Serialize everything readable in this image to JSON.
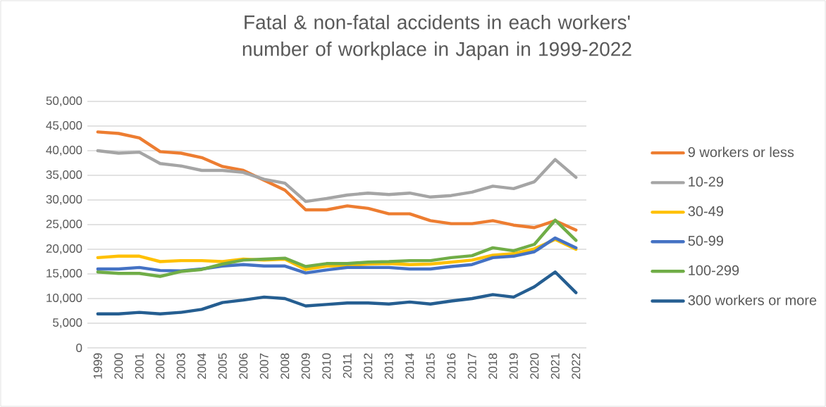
{
  "chart_data": {
    "type": "line",
    "title": "Fatal & non-fatal accidents in each workers' number of workplace in Japan in 1999-2022",
    "categories": [
      "1999",
      "2000",
      "2001",
      "2002",
      "2003",
      "2004",
      "2005",
      "2006",
      "2007",
      "2008",
      "2009",
      "2010",
      "2011",
      "2012",
      "2013",
      "2014",
      "2015",
      "2016",
      "2017",
      "2018",
      "2019",
      "2020",
      "2021",
      "2022"
    ],
    "series": [
      {
        "name": "9 workers or less",
        "color": "#ed7d31",
        "values": [
          43800,
          43500,
          42600,
          39800,
          39500,
          38600,
          36800,
          36000,
          34000,
          32000,
          28000,
          28000,
          28800,
          28300,
          27200,
          27200,
          25800,
          25200,
          25200,
          25800,
          24900,
          24400,
          25800,
          23900
        ]
      },
      {
        "name": "10-29",
        "color": "#a5a5a5",
        "values": [
          40000,
          39500,
          39700,
          37400,
          36900,
          36000,
          36000,
          35600,
          34200,
          33400,
          29700,
          30300,
          31000,
          31400,
          31100,
          31400,
          30600,
          30900,
          31600,
          32800,
          32300,
          33700,
          38200,
          34600
        ]
      },
      {
        "name": "30-49",
        "color": "#ffc000",
        "values": [
          18300,
          18600,
          18600,
          17500,
          17700,
          17700,
          17500,
          18000,
          17800,
          18000,
          15900,
          16600,
          16700,
          17000,
          17100,
          16900,
          17000,
          17400,
          17800,
          18800,
          19100,
          20100,
          22000,
          20000
        ]
      },
      {
        "name": "50-99",
        "color": "#4472c4",
        "values": [
          16000,
          16000,
          16300,
          15700,
          15600,
          16000,
          16600,
          16900,
          16600,
          16600,
          15200,
          15800,
          16300,
          16300,
          16300,
          16000,
          16000,
          16500,
          16900,
          18300,
          18600,
          19500,
          22300,
          20300
        ]
      },
      {
        "name": "100-299",
        "color": "#70ad47",
        "values": [
          15400,
          15100,
          15100,
          14500,
          15500,
          15900,
          17000,
          17800,
          18000,
          18200,
          16500,
          17100,
          17100,
          17400,
          17500,
          17700,
          17700,
          18300,
          18700,
          20300,
          19700,
          21000,
          25900,
          21800
        ]
      },
      {
        "name": "300 workers or more",
        "color": "#255e91",
        "values": [
          6900,
          6900,
          7200,
          6900,
          7200,
          7800,
          9200,
          9700,
          10300,
          10000,
          8500,
          8800,
          9100,
          9100,
          8900,
          9300,
          8900,
          9500,
          10000,
          10800,
          10300,
          12400,
          15400,
          11200
        ]
      }
    ],
    "ylim": [
      0,
      50000
    ],
    "yticks": [
      {
        "value": 0,
        "label": "0"
      },
      {
        "value": 5000,
        "label": "5,000"
      },
      {
        "value": 10000,
        "label": "10,000"
      },
      {
        "value": 15000,
        "label": "15,000"
      },
      {
        "value": 20000,
        "label": "20,000"
      },
      {
        "value": 25000,
        "label": "25,000"
      },
      {
        "value": 30000,
        "label": "30,000"
      },
      {
        "value": 35000,
        "label": "35,000"
      },
      {
        "value": 40000,
        "label": "40,000"
      },
      {
        "value": 45000,
        "label": "45,000"
      },
      {
        "value": 50000,
        "label": "50,000"
      }
    ],
    "grid": "y",
    "legend": "right",
    "marker": "none",
    "line_style": "solid"
  }
}
